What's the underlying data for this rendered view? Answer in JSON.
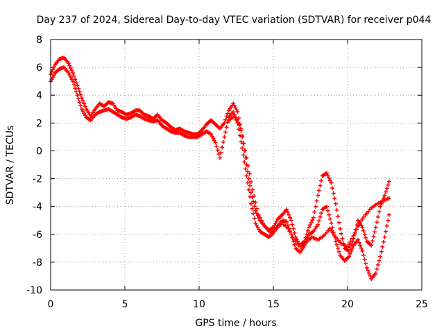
{
  "chart_data": {
    "type": "scatter",
    "title": "Day 237 of 2024, Sidereal Day-to-day VTEC variation (SDTVAR) for receiver p044",
    "xlabel": "GPS time / hours",
    "ylabel": "SDTVAR / TECUs",
    "xlim": [
      0,
      25
    ],
    "ylim": [
      -10,
      8
    ],
    "xticks": [
      0,
      5,
      10,
      15,
      20,
      25
    ],
    "yticks": [
      -10,
      -8,
      -6,
      -4,
      -2,
      0,
      2,
      4,
      6,
      8
    ],
    "grid": true,
    "marker": "+",
    "color": "#ff0000",
    "series": [
      {
        "x": [
          0.0,
          0.3,
          0.6,
          0.9,
          1.2,
          1.5,
          1.8,
          2.1,
          2.4,
          2.7,
          3.0,
          3.3,
          3.6,
          3.9,
          4.2,
          4.5,
          4.8,
          5.1,
          5.4,
          5.7,
          6.0,
          6.3,
          6.6,
          6.9,
          7.2,
          7.5,
          7.8,
          8.1,
          8.4,
          8.7,
          9.0,
          9.3,
          9.6,
          9.9,
          10.2,
          10.5,
          10.8,
          11.1,
          11.4,
          11.7,
          12.0,
          12.3,
          12.6,
          12.9,
          13.2,
          13.5,
          13.8,
          14.1,
          14.4,
          14.7,
          15.0,
          15.3,
          15.6,
          15.9,
          16.2,
          16.5,
          16.8,
          17.1,
          17.4,
          17.7,
          18.0,
          18.3,
          18.6,
          18.9,
          19.2,
          19.5,
          19.8,
          20.1,
          20.4,
          20.7,
          21.0,
          21.3,
          21.6,
          21.9,
          22.2,
          22.5,
          22.8
        ],
        "y": [
          5.5,
          6.2,
          6.6,
          6.7,
          6.3,
          5.6,
          4.7,
          3.8,
          3.0,
          2.5,
          3.0,
          3.4,
          3.2,
          3.5,
          3.4,
          2.9,
          2.8,
          2.6,
          2.7,
          2.9,
          2.9,
          2.6,
          2.5,
          2.3,
          2.6,
          2.2,
          2.0,
          1.7,
          1.5,
          1.6,
          1.4,
          1.3,
          1.2,
          1.2,
          1.5,
          1.9,
          2.2,
          1.9,
          1.6,
          2.0,
          2.9,
          3.4,
          2.8,
          1.0,
          -1.0,
          -3.0,
          -4.3,
          -5.0,
          -5.4,
          -5.7,
          -5.5,
          -4.9,
          -4.6,
          -4.2,
          -5.0,
          -6.2,
          -6.8,
          -6.5,
          -5.5,
          -4.8,
          -3.2,
          -1.8,
          -1.6,
          -2.3,
          -3.8,
          -5.6,
          -7.0,
          -7.2,
          -6.3,
          -5.0,
          -5.5,
          -6.5,
          -6.8,
          -5.5,
          -4.0,
          -3.2,
          -2.2
        ]
      },
      {
        "x": [
          0.0,
          0.3,
          0.6,
          0.9,
          1.2,
          1.5,
          1.8,
          2.1,
          2.4,
          2.7,
          3.0,
          3.3,
          3.6,
          3.9,
          4.2,
          4.5,
          4.8,
          5.1,
          5.4,
          5.7,
          6.0,
          6.3,
          6.6,
          6.9,
          7.2,
          7.5,
          7.8,
          8.1,
          8.4,
          8.7,
          9.0,
          9.3,
          9.6,
          9.9,
          10.2,
          10.5,
          10.8,
          11.1,
          11.4,
          11.7,
          12.0,
          12.3,
          12.6,
          12.9,
          13.2,
          13.5,
          13.8,
          14.1,
          14.4,
          14.7,
          15.0,
          15.3,
          15.6,
          15.9,
          16.2,
          16.5,
          16.8,
          17.1,
          17.4,
          17.7,
          18.0,
          18.3,
          18.6,
          18.9,
          19.2,
          19.5,
          19.8,
          20.1,
          20.4,
          20.7,
          21.0,
          21.3,
          21.6,
          21.9,
          22.2,
          22.5,
          22.8
        ],
        "y": [
          5.0,
          5.6,
          5.9,
          6.0,
          5.6,
          5.0,
          4.0,
          3.0,
          2.4,
          2.2,
          2.6,
          2.8,
          2.9,
          3.0,
          2.8,
          2.6,
          2.4,
          2.3,
          2.4,
          2.6,
          2.5,
          2.3,
          2.2,
          2.1,
          2.2,
          1.8,
          1.6,
          1.4,
          1.3,
          1.3,
          1.1,
          1.0,
          1.0,
          1.0,
          1.2,
          1.4,
          1.2,
          0.6,
          -0.5,
          1.0,
          2.4,
          2.8,
          2.0,
          0.2,
          -1.8,
          -3.8,
          -5.2,
          -5.8,
          -6.0,
          -6.2,
          -5.9,
          -5.4,
          -5.0,
          -5.1,
          -6.0,
          -7.0,
          -7.3,
          -6.8,
          -6.0,
          -5.8,
          -5.3,
          -4.2,
          -4.0,
          -5.2,
          -6.5,
          -7.5,
          -7.9,
          -7.6,
          -6.8,
          -6.4,
          -7.2,
          -8.4,
          -9.2,
          -8.8,
          -7.6,
          -6.2,
          -4.6
        ]
      },
      {
        "x": [
          12.0,
          12.4,
          12.8,
          13.2,
          13.6,
          14.0,
          14.4,
          14.8,
          15.2,
          15.6,
          16.0,
          16.4,
          16.8,
          17.2,
          17.6,
          18.0,
          18.4,
          18.8,
          19.2,
          19.6,
          20.0,
          20.4,
          20.8,
          21.2,
          21.6,
          22.0,
          22.4,
          22.8
        ],
        "y": [
          2.2,
          2.5,
          1.6,
          -0.5,
          -2.8,
          -4.6,
          -5.4,
          -5.9,
          -5.6,
          -5.2,
          -5.6,
          -6.4,
          -6.9,
          -6.6,
          -6.2,
          -6.4,
          -6.1,
          -5.6,
          -6.2,
          -6.7,
          -6.9,
          -6.1,
          -5.2,
          -4.6,
          -4.1,
          -3.8,
          -3.6,
          -3.4
        ]
      }
    ]
  }
}
